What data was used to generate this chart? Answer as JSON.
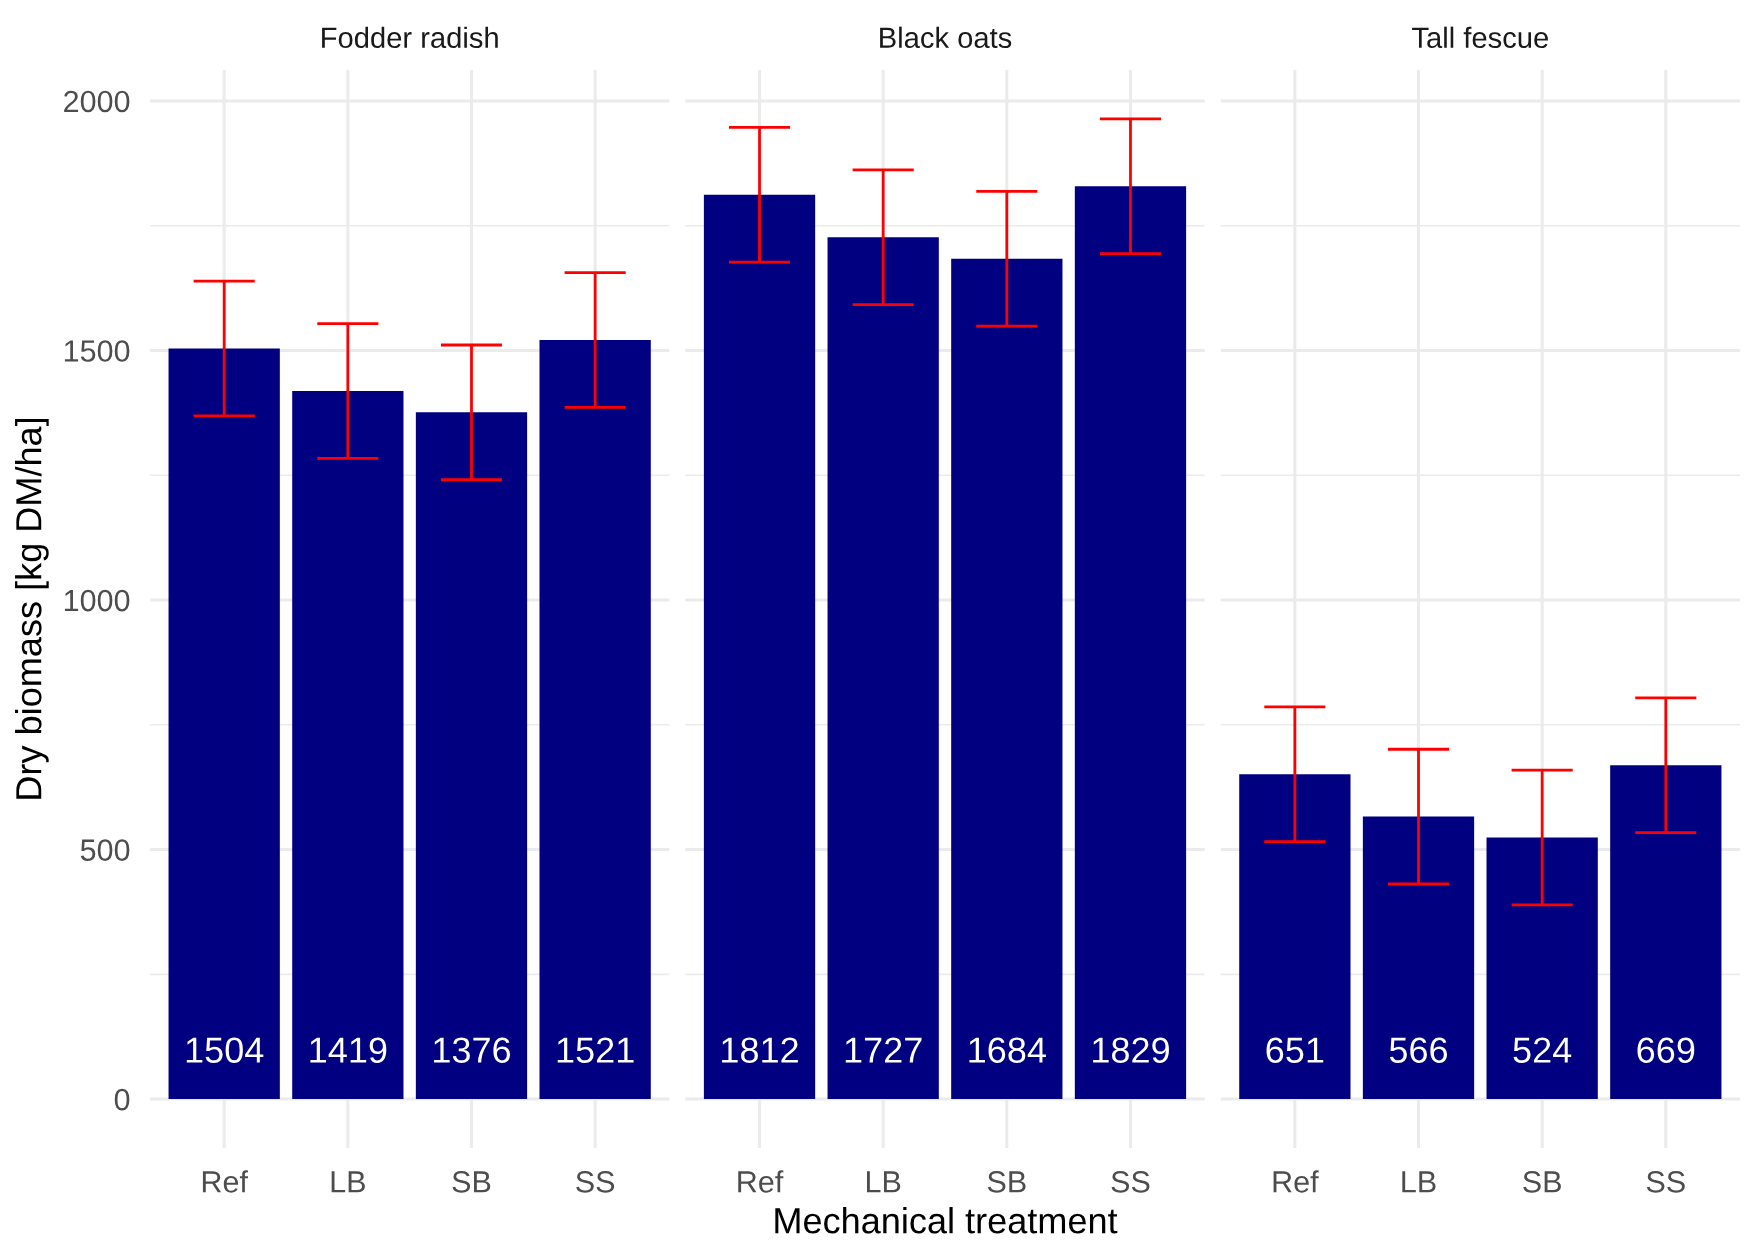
{
  "chart_data": [
    {
      "type": "bar",
      "title": "Fodder radish",
      "ylabel": "Dry biomass [kg DM/ha]",
      "categories": [
        "Ref",
        "LB",
        "SB",
        "SS"
      ],
      "values": [
        1504,
        1419,
        1376,
        1521
      ],
      "errors": [
        135,
        135,
        135,
        135
      ],
      "color": "#000080",
      "data_labels": true,
      "ylim": [
        -98,
        2062
      ],
      "yticks": [
        0,
        {
          "value": 250,
          "label": null
        },
        500,
        {
          "value": 750,
          "label": null
        },
        1000,
        {
          "value": 1250,
          "label": null
        },
        1500,
        {
          "value": 1750,
          "label": null
        },
        2000
      ],
      "grid": true
    },
    {
      "type": "bar",
      "title": "Black oats",
      "xlabel": "Mechanical treatment",
      "categories": [
        "Ref",
        "LB",
        "SB",
        "SS"
      ],
      "values": [
        1812,
        1727,
        1684,
        1829
      ],
      "errors": [
        135,
        135,
        135,
        135
      ],
      "color": "#000080",
      "data_labels": true,
      "ylim": [
        -98,
        2062
      ],
      "yticks": [
        0,
        {
          "value": 250,
          "label": null
        },
        500,
        {
          "value": 750,
          "label": null
        },
        1000,
        {
          "value": 1250,
          "label": null
        },
        1500,
        {
          "value": 1750,
          "label": null
        },
        2000
      ],
      "grid": true,
      "tick_labels": "x"
    },
    {
      "type": "bar",
      "title": "Tall fescue",
      "categories": [
        "Ref",
        "LB",
        "SB",
        "SS"
      ],
      "values": [
        651,
        566,
        524,
        669
      ],
      "errors": [
        135,
        135,
        135,
        135
      ],
      "color": "#000080",
      "data_labels": true,
      "ylim": [
        -98,
        2062
      ],
      "yticks": [
        0,
        {
          "value": 250,
          "label": null
        },
        500,
        {
          "value": 750,
          "label": null
        },
        1000,
        {
          "value": 1250,
          "label": null
        },
        1500,
        {
          "value": 1750,
          "label": null
        },
        2000
      ],
      "grid": true,
      "tick_labels": "x"
    }
  ]
}
